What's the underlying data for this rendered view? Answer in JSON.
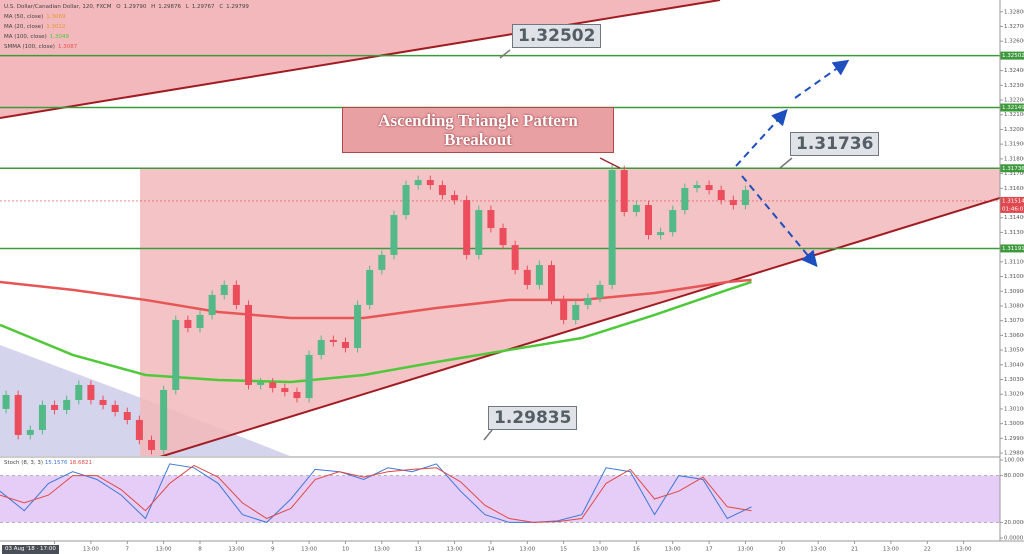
{
  "chart_data": [
    {
      "type": "candlestick",
      "title": "U.S. Dollar/Canadian Dollar, 120, FXCM",
      "readout": [
        {
          "label": "O",
          "value": "1.29790"
        },
        {
          "label": "H",
          "value": "1.29876"
        },
        {
          "label": "L",
          "value": "1.29767"
        },
        {
          "label": "C",
          "value": "1.29799"
        }
      ],
      "indicators": [
        {
          "name": "MA (50, close)",
          "value": "1.3069"
        },
        {
          "name": "MA (20, close)",
          "value": "1.3012"
        },
        {
          "name": "MA (100, close)",
          "value": "1.3049"
        },
        {
          "name": "SMMA (100, close)",
          "value": "1.3087"
        }
      ],
      "up_color": "#53b987",
      "down_color": "#eb4d5c",
      "x": [
        1,
        3,
        5,
        7,
        9,
        11,
        13,
        15,
        17,
        19,
        21,
        23,
        25,
        27,
        29,
        31,
        33,
        35,
        37,
        39,
        41,
        43,
        45,
        47,
        49,
        51,
        53,
        55,
        57,
        59,
        61,
        63,
        65,
        67,
        69,
        71,
        73,
        75,
        77,
        79,
        81,
        83,
        85,
        87,
        89,
        91,
        93,
        95,
        97,
        99,
        101,
        103,
        105,
        107,
        109,
        111,
        113,
        115,
        117,
        119,
        121,
        123
      ],
      "open": [
        1.301,
        1.30195,
        1.29923,
        1.29957,
        1.30127,
        1.30093,
        1.30161,
        1.30263,
        1.30161,
        1.30127,
        1.30079,
        1.30025,
        1.29889,
        1.29821,
        1.30229,
        1.30705,
        1.3065,
        1.30739,
        1.30875,
        1.30943,
        1.30807,
        1.30263,
        1.3028,
        1.30242,
        1.30215,
        1.30174,
        1.30467,
        1.30569,
        1.30555,
        1.30514,
        1.30807,
        1.31045,
        1.31147,
        1.31418,
        1.31622,
        1.31656,
        1.31622,
        1.31554,
        1.3152,
        1.31147,
        1.31452,
        1.3133,
        1.31214,
        1.31045,
        1.30943,
        1.31078,
        1.30841,
        1.30705,
        1.30807,
        1.30854,
        1.30943,
        1.31724,
        1.31439,
        1.31486,
        1.31282,
        1.31302,
        1.31452,
        1.31602,
        1.31622,
        1.31588,
        1.3152,
        1.31486
      ],
      "high": [
        1.30225,
        1.30225,
        1.29987,
        1.30157,
        1.30157,
        1.30191,
        1.30293,
        1.30293,
        1.30191,
        1.30157,
        1.30109,
        1.30055,
        1.29919,
        1.30259,
        1.30735,
        1.30735,
        1.30769,
        1.30905,
        1.30973,
        1.30973,
        1.30837,
        1.3031,
        1.3031,
        1.30272,
        1.30245,
        1.30497,
        1.30599,
        1.30599,
        1.30585,
        1.30837,
        1.31075,
        1.31177,
        1.31448,
        1.31652,
        1.31686,
        1.31686,
        1.31652,
        1.31584,
        1.3155,
        1.31482,
        1.31482,
        1.3136,
        1.31244,
        1.31075,
        1.31108,
        1.31108,
        1.30871,
        1.30837,
        1.30884,
        1.30973,
        1.3176,
        1.31754,
        1.31516,
        1.31516,
        1.31332,
        1.31482,
        1.31632,
        1.31652,
        1.31652,
        1.31618,
        1.3155,
        1.31618
      ],
      "low": [
        1.3007,
        1.29893,
        1.29893,
        1.29927,
        1.30063,
        1.30063,
        1.30131,
        1.30131,
        1.30097,
        1.30049,
        1.29995,
        1.29859,
        1.29791,
        1.29791,
        1.30199,
        1.3062,
        1.3062,
        1.30709,
        1.30845,
        1.30777,
        1.30233,
        1.30233,
        1.30212,
        1.30185,
        1.30144,
        1.30144,
        1.30437,
        1.30525,
        1.30484,
        1.30484,
        1.30777,
        1.31015,
        1.31117,
        1.31388,
        1.31592,
        1.31592,
        1.31524,
        1.3149,
        1.31117,
        1.31117,
        1.313,
        1.31184,
        1.31015,
        1.30913,
        1.30913,
        1.30811,
        1.30675,
        1.30675,
        1.30777,
        1.30824,
        1.30913,
        1.31409,
        1.31409,
        1.31252,
        1.31252,
        1.31272,
        1.31422,
        1.31572,
        1.31558,
        1.3149,
        1.31456,
        1.31456
      ],
      "close": [
        1.30195,
        1.29923,
        1.29957,
        1.30127,
        1.30093,
        1.30161,
        1.30263,
        1.30161,
        1.30127,
        1.30079,
        1.30025,
        1.29889,
        1.29821,
        1.30229,
        1.30705,
        1.3065,
        1.30739,
        1.30875,
        1.30943,
        1.30807,
        1.30263,
        1.3028,
        1.30242,
        1.30215,
        1.30174,
        1.30467,
        1.30569,
        1.30555,
        1.30514,
        1.30807,
        1.31045,
        1.31147,
        1.31418,
        1.31622,
        1.31656,
        1.31622,
        1.31554,
        1.3152,
        1.31147,
        1.31452,
        1.3133,
        1.31214,
        1.31045,
        1.30943,
        1.31078,
        1.30841,
        1.30705,
        1.30807,
        1.30854,
        1.30943,
        1.31724,
        1.31439,
        1.31486,
        1.31282,
        1.31302,
        1.31452,
        1.31602,
        1.31622,
        1.31588,
        1.3152,
        1.31486,
        1.31588
      ],
      "lines": [
        {
          "color": "#e75656",
          "x": [
            0,
            12,
            24,
            36,
            48,
            60,
            72,
            84,
            96,
            108,
            120,
            124
          ],
          "values": [
            1.30963,
            1.30909,
            1.30841,
            1.30759,
            1.30718,
            1.30718,
            1.30786,
            1.30841,
            1.30841,
            1.30888,
            1.30963,
            1.30977
          ]
        },
        {
          "color": "#4fc93a",
          "x": [
            0,
            12,
            24,
            36,
            48,
            60,
            72,
            84,
            96,
            108,
            120,
            124
          ],
          "values": [
            1.30671,
            1.30467,
            1.30331,
            1.30297,
            1.30283,
            1.30331,
            1.30419,
            1.30501,
            1.30582,
            1.30739,
            1.30909,
            1.30963
          ]
        }
      ],
      "levels": [
        1.32502,
        1.32149,
        1.31736,
        1.31191
      ],
      "level_color": "#3c9a3c",
      "current": {
        "value": 1.31514,
        "countdown": "01:46:07",
        "color": "#e0484f"
      },
      "callouts": [
        "Ascending Triangle Pattern Breakout",
        "1.32502",
        "1.31736",
        "1.29835"
      ],
      "cursor_label": "03 Aug '18 · 17:00",
      "xlim": [
        0,
        165
      ],
      "xticks": [
        {
          "value": 9,
          "label": "6"
        },
        {
          "value": 15,
          "label": "13:00"
        },
        {
          "value": 21,
          "label": "7"
        },
        {
          "value": 27,
          "label": "13:00"
        },
        {
          "value": 33,
          "label": "8"
        },
        {
          "value": 39,
          "label": "13:00"
        },
        {
          "value": 45,
          "label": "9"
        },
        {
          "value": 51,
          "label": "13:00"
        },
        {
          "value": 57,
          "label": "10"
        },
        {
          "value": 63,
          "label": "13:00"
        },
        {
          "value": 69,
          "label": "13"
        },
        {
          "value": 75,
          "label": "13:00"
        },
        {
          "value": 81,
          "label": "14"
        },
        {
          "value": 87,
          "label": "13:00"
        },
        {
          "value": 93,
          "label": "15"
        },
        {
          "value": 99,
          "label": "13:00"
        },
        {
          "value": 105,
          "label": "16"
        },
        {
          "value": 111,
          "label": "13:00"
        },
        {
          "value": 117,
          "label": "17"
        },
        {
          "value": 123,
          "label": "13:00"
        },
        {
          "value": 129,
          "label": "20"
        },
        {
          "value": 135,
          "label": "13:00"
        },
        {
          "value": 141,
          "label": "21"
        },
        {
          "value": 147,
          "label": "13:00"
        },
        {
          "value": 153,
          "label": "22"
        },
        {
          "value": 159,
          "label": "13:00"
        }
      ],
      "ylim": [
        1.2978,
        1.3288
      ],
      "yticks": [
        {
          "value": 1.298,
          "label": "1.29800"
        },
        {
          "value": 1.299,
          "label": "1.29900"
        },
        {
          "value": 1.3,
          "label": "1.30000"
        },
        {
          "value": 1.301,
          "label": "1.30100"
        },
        {
          "value": 1.302,
          "label": "1.30200"
        },
        {
          "value": 1.303,
          "label": "1.30300"
        },
        {
          "value": 1.304,
          "label": "1.30400"
        },
        {
          "value": 1.305,
          "label": "1.30500"
        },
        {
          "value": 1.306,
          "label": "1.30600"
        },
        {
          "value": 1.307,
          "label": "1.30700"
        },
        {
          "value": 1.308,
          "label": "1.30800"
        },
        {
          "value": 1.309,
          "label": "1.30900"
        },
        {
          "value": 1.31,
          "label": "1.31000"
        },
        {
          "value": 1.311,
          "label": "1.31100"
        },
        {
          "value": 1.312,
          "label": "1.31200"
        },
        {
          "value": 1.313,
          "label": "1.31300"
        },
        {
          "value": 1.314,
          "label": "1.31400"
        },
        {
          "value": 1.315,
          "label": "1.31500"
        },
        {
          "value": 1.316,
          "label": "1.31600"
        },
        {
          "value": 1.317,
          "label": "1.31700"
        },
        {
          "value": 1.318,
          "label": "1.31800"
        },
        {
          "value": 1.319,
          "label": "1.31900"
        },
        {
          "value": 1.32,
          "label": "1.32000"
        },
        {
          "value": 1.321,
          "label": "1.32100"
        },
        {
          "value": 1.322,
          "label": "1.32200"
        },
        {
          "value": 1.323,
          "label": "1.32300"
        },
        {
          "value": 1.324,
          "label": "1.32400"
        },
        {
          "value": 1.325,
          "label": "1.32500"
        },
        {
          "value": 1.326,
          "label": "1.32600"
        },
        {
          "value": 1.327,
          "label": "1.32700"
        },
        {
          "value": 1.328,
          "label": "1.32800"
        }
      ]
    },
    {
      "type": "line",
      "title": "Stoch (8, 3, 3)",
      "x": [
        0,
        4,
        8,
        12,
        16,
        20,
        24,
        28,
        32,
        36,
        40,
        44,
        48,
        52,
        56,
        60,
        64,
        68,
        72,
        76,
        80,
        84,
        88,
        92,
        96,
        100,
        104,
        108,
        112,
        116,
        120,
        124
      ],
      "series": [
        {
          "color": "#3c78d8",
          "readout": "15.1576",
          "values": [
            60,
            35,
            70,
            85,
            75,
            55,
            25,
            95,
            90,
            70,
            30,
            20,
            50,
            88,
            85,
            75,
            90,
            85,
            95,
            60,
            30,
            20,
            20,
            22,
            30,
            90,
            85,
            30,
            80,
            75,
            25,
            40
          ]
        },
        {
          "color": "#e04848",
          "readout": "18.6821",
          "values": [
            55,
            45,
            55,
            80,
            80,
            62,
            35,
            70,
            93,
            78,
            45,
            25,
            38,
            75,
            85,
            78,
            85,
            88,
            90,
            72,
            42,
            25,
            20,
            21,
            25,
            70,
            88,
            50,
            60,
            78,
            40,
            35
          ]
        }
      ],
      "band_color": "#e6cdf7",
      "xlim": [
        0,
        165
      ],
      "ylim": [
        0,
        100
      ],
      "yticks": [
        {
          "value": 100,
          "label": "100.0000"
        },
        {
          "value": 80,
          "label": "80.0000"
        },
        {
          "value": 20,
          "label": "20.0000"
        },
        {
          "value": 0,
          "label": "0.0000"
        }
      ]
    }
  ]
}
